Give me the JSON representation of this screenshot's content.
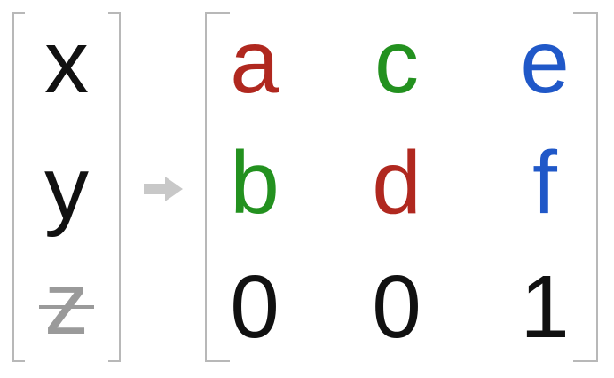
{
  "input_vector": [
    {
      "text": "x",
      "color": "#111111",
      "struck": false
    },
    {
      "text": "y",
      "color": "#111111",
      "struck": false
    },
    {
      "text": "z",
      "color": "#9a9a9a",
      "struck": true
    }
  ],
  "output_matrix": [
    [
      {
        "text": "a",
        "color": "#b0281f"
      },
      {
        "text": "c",
        "color": "#23911f"
      },
      {
        "text": "e",
        "color": "#2058c8"
      }
    ],
    [
      {
        "text": "b",
        "color": "#23911f"
      },
      {
        "text": "d",
        "color": "#b0281f"
      },
      {
        "text": "f",
        "color": "#2058c8"
      }
    ],
    [
      {
        "text": "0",
        "color": "#111111"
      },
      {
        "text": "0",
        "color": "#111111"
      },
      {
        "text": "1",
        "color": "#111111"
      }
    ]
  ],
  "colors": {
    "bracket": "#b8b8b8",
    "arrow": "#c8c8c8"
  },
  "icons": {
    "arrow": "right-arrow-icon"
  }
}
